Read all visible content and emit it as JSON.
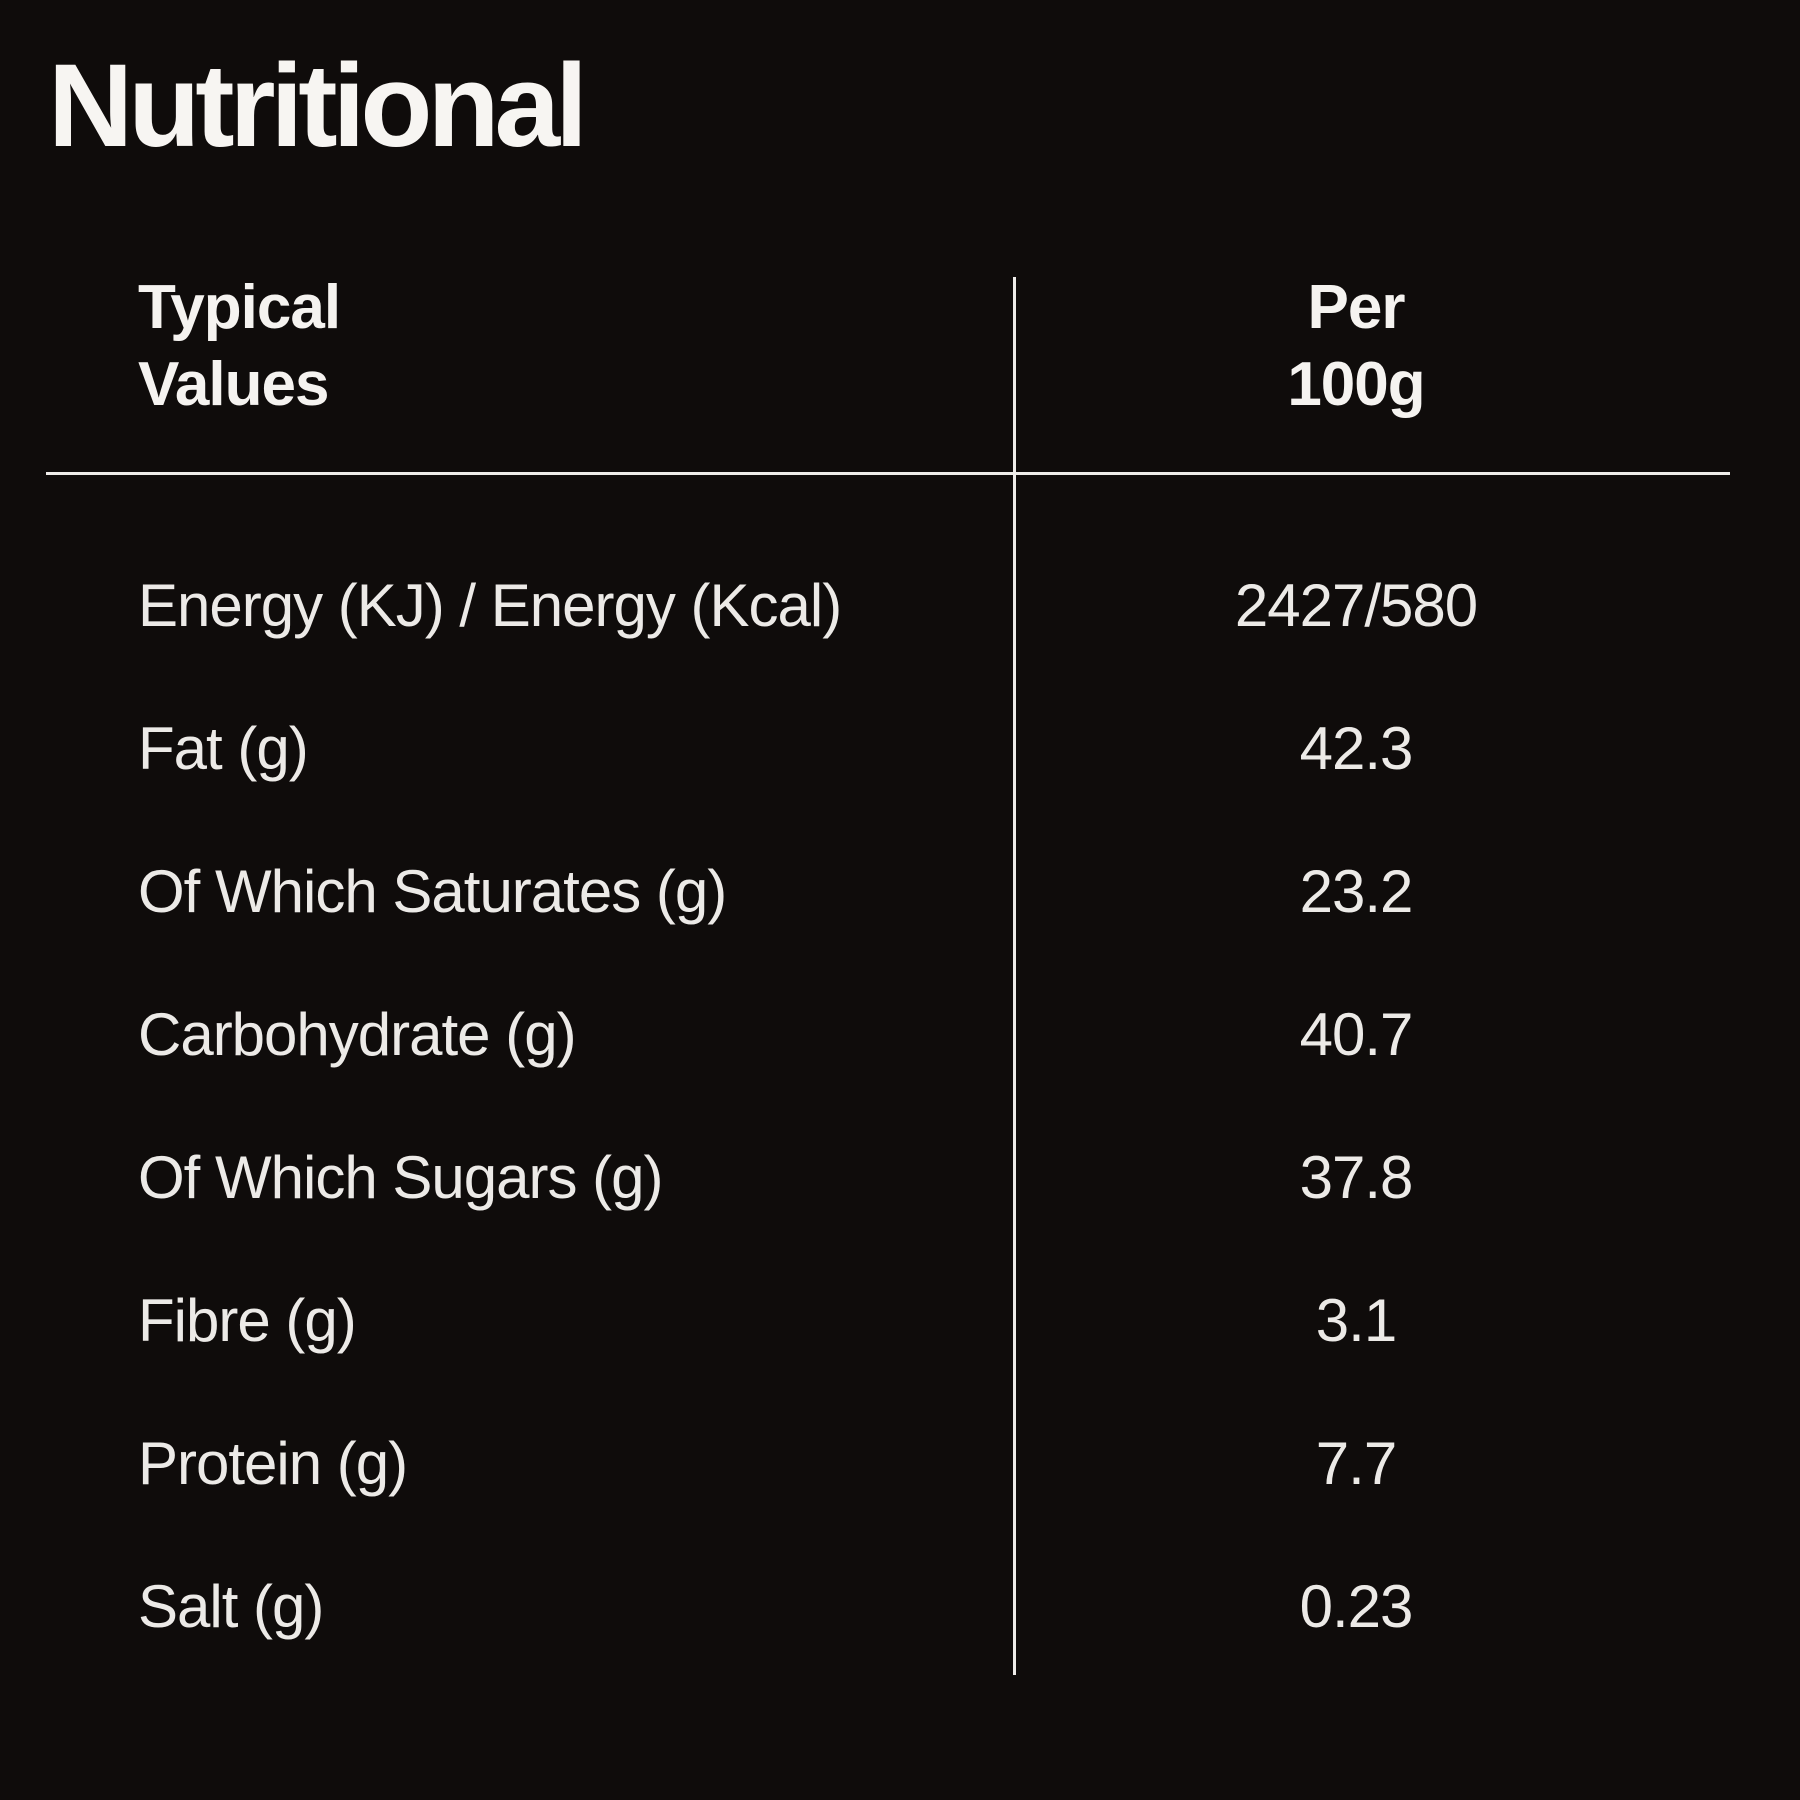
{
  "page": {
    "background_color": "#0f0c0b",
    "text_color": "#f2f0ed",
    "rule_color": "#efedea"
  },
  "title": "Nutritional",
  "table": {
    "header": {
      "col1_line1": "Typical",
      "col1_line2": "Values",
      "col2_line1": "Per",
      "col2_line2": "100g"
    },
    "rows": [
      {
        "label": "Energy (KJ) / Energy (Kcal)",
        "value": "2427/580"
      },
      {
        "label": "Fat (g)",
        "value": "42.3"
      },
      {
        "label": "Of Which Saturates (g)",
        "value": "23.2"
      },
      {
        "label": "Carbohydrate (g)",
        "value": "40.7"
      },
      {
        "label": "Of Which Sugars (g)",
        "value": "37.8"
      },
      {
        "label": "Fibre (g)",
        "value": "3.1"
      },
      {
        "label": "Protein (g)",
        "value": "7.7"
      },
      {
        "label": "Salt (g)",
        "value": "0.23"
      }
    ]
  }
}
